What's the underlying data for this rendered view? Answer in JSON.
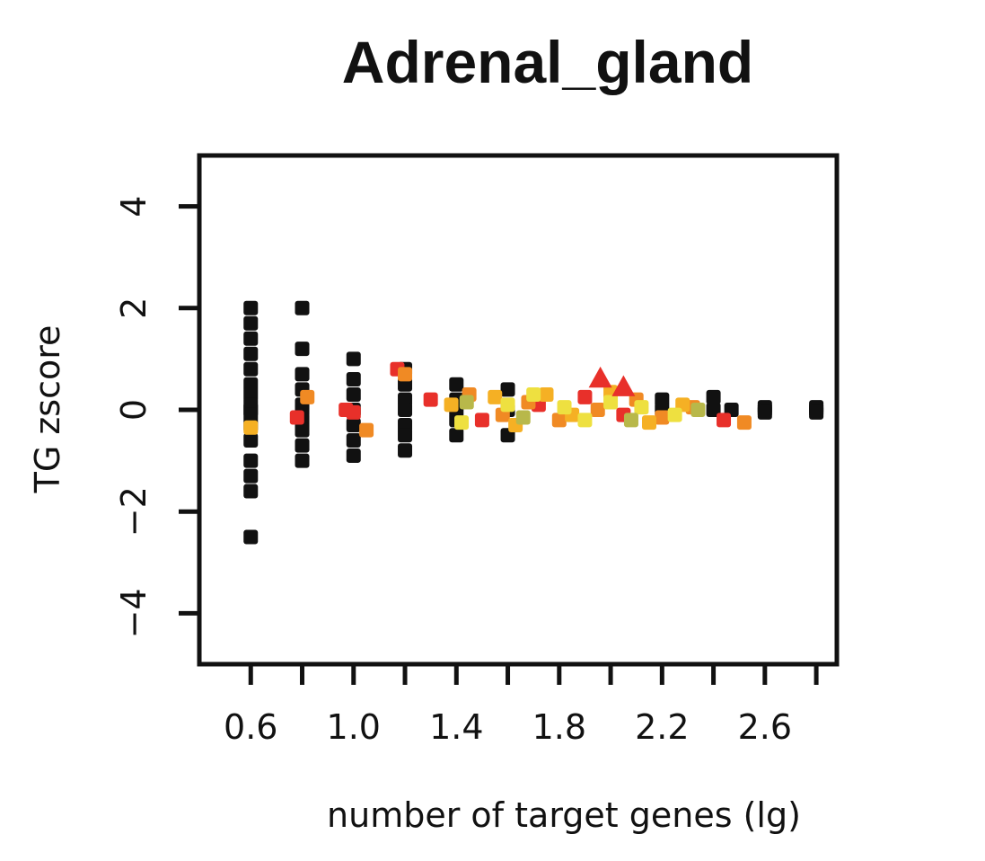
{
  "chart_data": {
    "type": "scatter",
    "title": "Adrenal_gland",
    "xlabel": "number of target genes (lg)",
    "ylabel": "TG zscore",
    "xlim": [
      0.4,
      2.88
    ],
    "ylim": [
      -5,
      5
    ],
    "x_ticks": [
      0.6,
      0.8,
      1.0,
      1.2,
      1.4,
      1.6,
      1.8,
      2.0,
      2.2,
      2.4,
      2.6,
      2.8
    ],
    "x_tick_labels": [
      "0.6",
      "1.0",
      "1.4",
      "1.8",
      "2.2",
      "2.6"
    ],
    "x_tick_label_values": [
      0.6,
      1.0,
      1.4,
      1.8,
      2.2,
      2.6
    ],
    "y_ticks": [
      -4,
      -2,
      0,
      2,
      4
    ],
    "y_tick_labels": [
      "−4",
      "−2",
      "0",
      "2",
      "4"
    ],
    "grid": false,
    "colors": {
      "black": "#111111",
      "red": "#e8302a",
      "orange_red": "#ee5a24",
      "orange": "#f08a24",
      "amber": "#f5b024",
      "yellow": "#eee040",
      "olive": "#b8b84a"
    },
    "series": [
      {
        "marker": "square",
        "color": "black",
        "points": [
          [
            0.6,
            2.0
          ],
          [
            0.6,
            1.7
          ],
          [
            0.6,
            1.4
          ],
          [
            0.6,
            1.1
          ],
          [
            0.6,
            0.8
          ],
          [
            0.6,
            0.5
          ],
          [
            0.6,
            0.3
          ],
          [
            0.6,
            0.1
          ],
          [
            0.6,
            0.0
          ],
          [
            0.6,
            -0.1
          ],
          [
            0.6,
            -0.3
          ],
          [
            0.6,
            -0.6
          ],
          [
            0.6,
            -1.0
          ],
          [
            0.6,
            -1.3
          ],
          [
            0.6,
            -1.6
          ],
          [
            0.6,
            -2.5
          ],
          [
            0.8,
            2.0
          ],
          [
            0.8,
            1.2
          ],
          [
            0.8,
            0.7
          ],
          [
            0.8,
            0.4
          ],
          [
            0.8,
            0.1
          ],
          [
            0.8,
            0.0
          ],
          [
            0.8,
            -0.2
          ],
          [
            0.8,
            -0.4
          ],
          [
            0.8,
            -0.7
          ],
          [
            0.8,
            -1.0
          ],
          [
            1.0,
            1.0
          ],
          [
            1.0,
            0.6
          ],
          [
            1.0,
            0.3
          ],
          [
            1.0,
            0.0
          ],
          [
            1.0,
            -0.3
          ],
          [
            1.0,
            -0.6
          ],
          [
            1.0,
            -0.9
          ],
          [
            1.2,
            0.8
          ],
          [
            1.2,
            0.5
          ],
          [
            1.2,
            0.2
          ],
          [
            1.2,
            0.0
          ],
          [
            1.2,
            -0.3
          ],
          [
            1.2,
            -0.5
          ],
          [
            1.2,
            -0.8
          ],
          [
            1.4,
            0.5
          ],
          [
            1.4,
            0.2
          ],
          [
            1.4,
            0.0
          ],
          [
            1.4,
            -0.2
          ],
          [
            1.4,
            -0.5
          ],
          [
            1.6,
            0.4
          ],
          [
            1.6,
            0.0
          ],
          [
            1.6,
            -0.5
          ],
          [
            2.2,
            0.2
          ],
          [
            2.2,
            0.0
          ],
          [
            2.4,
            0.25
          ],
          [
            2.4,
            0.0
          ],
          [
            2.47,
            0.0
          ],
          [
            2.6,
            0.05
          ],
          [
            2.6,
            0.0
          ],
          [
            2.6,
            -0.05
          ],
          [
            2.8,
            0.05
          ],
          [
            2.8,
            0.0
          ],
          [
            2.8,
            -0.05
          ]
        ]
      },
      {
        "marker": "square",
        "color": "red",
        "points": [
          [
            0.78,
            -0.15
          ],
          [
            0.97,
            0.0
          ],
          [
            1.0,
            -0.05
          ],
          [
            1.17,
            0.8
          ],
          [
            1.3,
            0.2
          ],
          [
            1.5,
            -0.2
          ],
          [
            1.72,
            0.1
          ],
          [
            1.9,
            0.25
          ],
          [
            2.05,
            -0.1
          ],
          [
            2.44,
            -0.2
          ]
        ]
      },
      {
        "marker": "square",
        "color": "orange",
        "points": [
          [
            0.82,
            0.25
          ],
          [
            1.05,
            -0.4
          ],
          [
            1.2,
            0.7
          ],
          [
            1.45,
            0.3
          ],
          [
            1.58,
            -0.1
          ],
          [
            1.68,
            0.15
          ],
          [
            1.8,
            -0.2
          ],
          [
            1.95,
            0.0
          ],
          [
            2.1,
            0.2
          ],
          [
            2.2,
            -0.15
          ],
          [
            2.32,
            0.05
          ],
          [
            2.52,
            -0.25
          ]
        ]
      },
      {
        "marker": "square",
        "color": "amber",
        "points": [
          [
            0.6,
            -0.35
          ],
          [
            1.38,
            0.1
          ],
          [
            1.55,
            0.25
          ],
          [
            1.63,
            -0.3
          ],
          [
            1.75,
            0.3
          ],
          [
            1.85,
            -0.1
          ],
          [
            2.0,
            0.35
          ],
          [
            2.15,
            -0.25
          ],
          [
            2.28,
            0.1
          ]
        ]
      },
      {
        "marker": "square",
        "color": "yellow",
        "points": [
          [
            1.42,
            -0.25
          ],
          [
            1.6,
            0.1
          ],
          [
            1.7,
            0.3
          ],
          [
            1.82,
            0.05
          ],
          [
            1.9,
            -0.2
          ],
          [
            2.0,
            0.15
          ],
          [
            2.12,
            0.05
          ],
          [
            2.25,
            -0.1
          ]
        ]
      },
      {
        "marker": "square",
        "color": "olive",
        "points": [
          [
            1.44,
            0.15
          ],
          [
            1.66,
            -0.15
          ],
          [
            2.08,
            -0.2
          ],
          [
            2.34,
            0.0
          ]
        ]
      },
      {
        "marker": "triangle",
        "color": "red",
        "points": [
          [
            1.96,
            0.62
          ],
          [
            2.05,
            0.45
          ]
        ]
      }
    ]
  }
}
